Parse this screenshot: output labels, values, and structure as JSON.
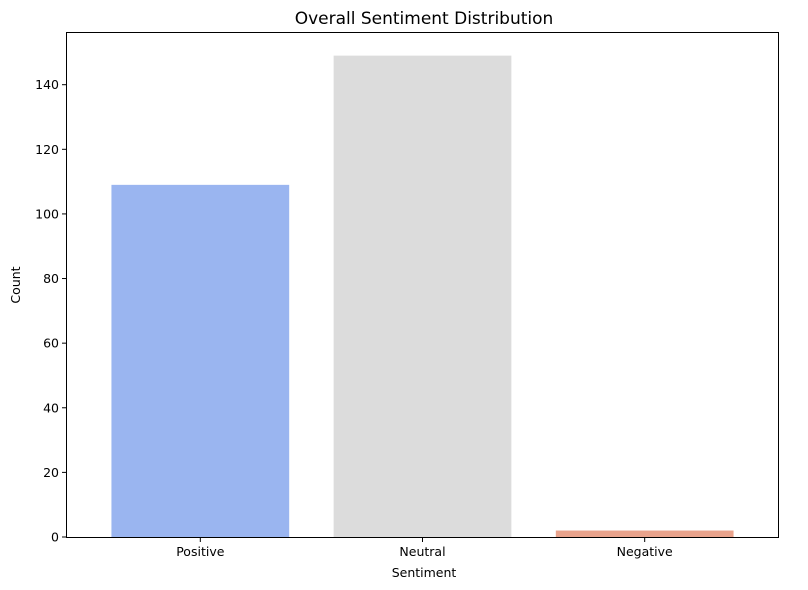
{
  "chart_data": {
    "type": "bar",
    "title": "Overall Sentiment Distribution",
    "xlabel": "Sentiment",
    "ylabel": "Count",
    "categories": [
      "Positive",
      "Neutral",
      "Negative"
    ],
    "values": [
      109,
      149,
      2
    ],
    "colors": [
      "#9ab5f0",
      "#dcdcdc",
      "#e9a38c"
    ],
    "ylim": [
      0,
      156
    ],
    "yticks": [
      0,
      20,
      40,
      60,
      80,
      100,
      120,
      140
    ],
    "grid": false
  }
}
